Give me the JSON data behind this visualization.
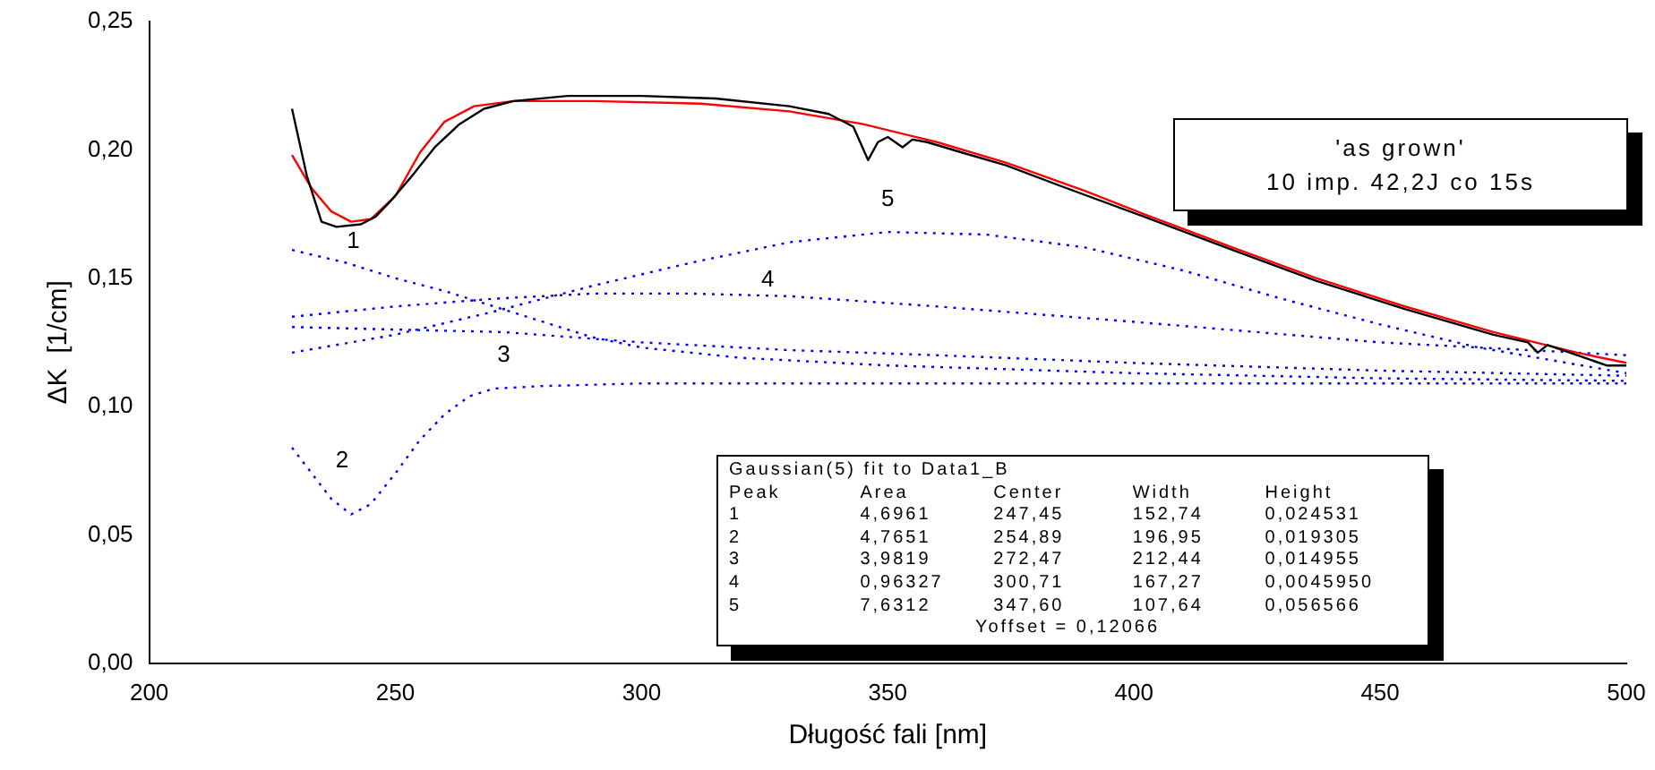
{
  "chart_data": {
    "type": "line",
    "xlabel": "Długość fali [nm]",
    "ylabel": "ΔK  [1/cm]",
    "xlim": [
      200,
      500
    ],
    "xticks": [
      200,
      250,
      300,
      350,
      400,
      450,
      500
    ],
    "ylim": [
      0,
      0.25
    ],
    "yticks": [
      {
        "value": 0,
        "label": "0,00"
      },
      {
        "value": 0.05,
        "label": "0,05"
      },
      {
        "value": 0.1,
        "label": "0,10"
      },
      {
        "value": 0.15,
        "label": "0,15"
      },
      {
        "value": 0.2,
        "label": "0,20"
      },
      {
        "value": 0.25,
        "label": "0,25"
      }
    ],
    "grid": false,
    "legend": false,
    "marker": "none",
    "series": [
      {
        "color": "#000000",
        "line_style": "solid",
        "x": [
          229,
          232,
          235,
          238,
          243,
          246,
          249,
          253,
          258,
          263,
          268,
          274,
          285,
          300,
          315,
          330,
          338,
          343,
          346,
          348,
          350,
          353,
          355,
          358,
          365,
          374,
          385,
          402,
          420,
          437,
          455,
          473,
          480,
          482,
          484,
          490,
          496,
          500
        ],
        "values": [
          0.216,
          0.19,
          0.172,
          0.17,
          0.171,
          0.174,
          0.18,
          0.189,
          0.201,
          0.21,
          0.216,
          0.219,
          0.221,
          0.221,
          0.22,
          0.217,
          0.214,
          0.209,
          0.196,
          0.203,
          0.205,
          0.201,
          0.204,
          0.203,
          0.199,
          0.194,
          0.186,
          0.174,
          0.161,
          0.149,
          0.138,
          0.128,
          0.125,
          0.121,
          0.124,
          0.12,
          0.116,
          0.116
        ]
      },
      {
        "color": "#ff0000",
        "line_style": "solid",
        "x": [
          229,
          233,
          237,
          241,
          245,
          250,
          255,
          260,
          266,
          274,
          290,
          312,
          330,
          345,
          360,
          374,
          390,
          402,
          420,
          437,
          455,
          473,
          490,
          500
        ],
        "values": [
          0.198,
          0.185,
          0.176,
          0.172,
          0.173,
          0.182,
          0.199,
          0.211,
          0.217,
          0.219,
          0.219,
          0.218,
          0.215,
          0.21,
          0.203,
          0.195,
          0.184,
          0.175,
          0.162,
          0.15,
          0.139,
          0.129,
          0.121,
          0.117
        ]
      },
      {
        "name": "1",
        "color": "#0000ff",
        "line_style": "dotted",
        "x": [
          229,
          240,
          250,
          260,
          270,
          280,
          290,
          300,
          320,
          350,
          400,
          450,
          500
        ],
        "values": [
          0.161,
          0.156,
          0.15,
          0.145,
          0.139,
          0.133,
          0.127,
          0.123,
          0.119,
          0.116,
          0.113,
          0.111,
          0.11
        ]
      },
      {
        "name": "2",
        "color": "#0000ff",
        "line_style": "dotted",
        "x": [
          229,
          233,
          237,
          241,
          245,
          250,
          255,
          260,
          265,
          270,
          280,
          300,
          400,
          500
        ],
        "values": [
          0.084,
          0.074,
          0.064,
          0.058,
          0.062,
          0.074,
          0.087,
          0.097,
          0.104,
          0.107,
          0.108,
          0.109,
          0.109,
          0.109
        ]
      },
      {
        "name": "3",
        "color": "#0000ff",
        "line_style": "dotted",
        "x": [
          229,
          250,
          272,
          300,
          330,
          360,
          400,
          450,
          500
        ],
        "values": [
          0.131,
          0.13,
          0.129,
          0.125,
          0.122,
          0.12,
          0.117,
          0.114,
          0.112
        ]
      },
      {
        "name": "4",
        "color": "#0000ff",
        "line_style": "dotted",
        "x": [
          229,
          250,
          270,
          290,
          310,
          330,
          360,
          400,
          450,
          500
        ],
        "values": [
          0.135,
          0.139,
          0.142,
          0.144,
          0.144,
          0.143,
          0.139,
          0.133,
          0.125,
          0.12
        ]
      },
      {
        "name": "5",
        "color": "#0000ff",
        "line_style": "dotted",
        "x": [
          229,
          250,
          270,
          290,
          310,
          330,
          350,
          370,
          390,
          410,
          430,
          450,
          470,
          500
        ],
        "values": [
          0.121,
          0.128,
          0.137,
          0.147,
          0.156,
          0.164,
          0.168,
          0.167,
          0.162,
          0.153,
          0.142,
          0.132,
          0.123,
          0.113
        ]
      }
    ],
    "annotations": [
      "'as grown'\n10 imp. 42,2J co 15s",
      "Gaussian(5) fit to Data1_B\nPeak\tArea\tCenter\tWidth\tHeight\n1\t4,6961\t247,45\t152,74\t0,024531\n2\t4,7651\t254,89\t196,95\t0,019305\n3\t3,9819\t272,47\t212,44\t0,014955\n4\t0,96327\t300,71\t167,27\t0,0045950\n5\t7,6312\t347,60\t107,64\t0,056566\nYoffset = 0,12066"
    ]
  }
}
